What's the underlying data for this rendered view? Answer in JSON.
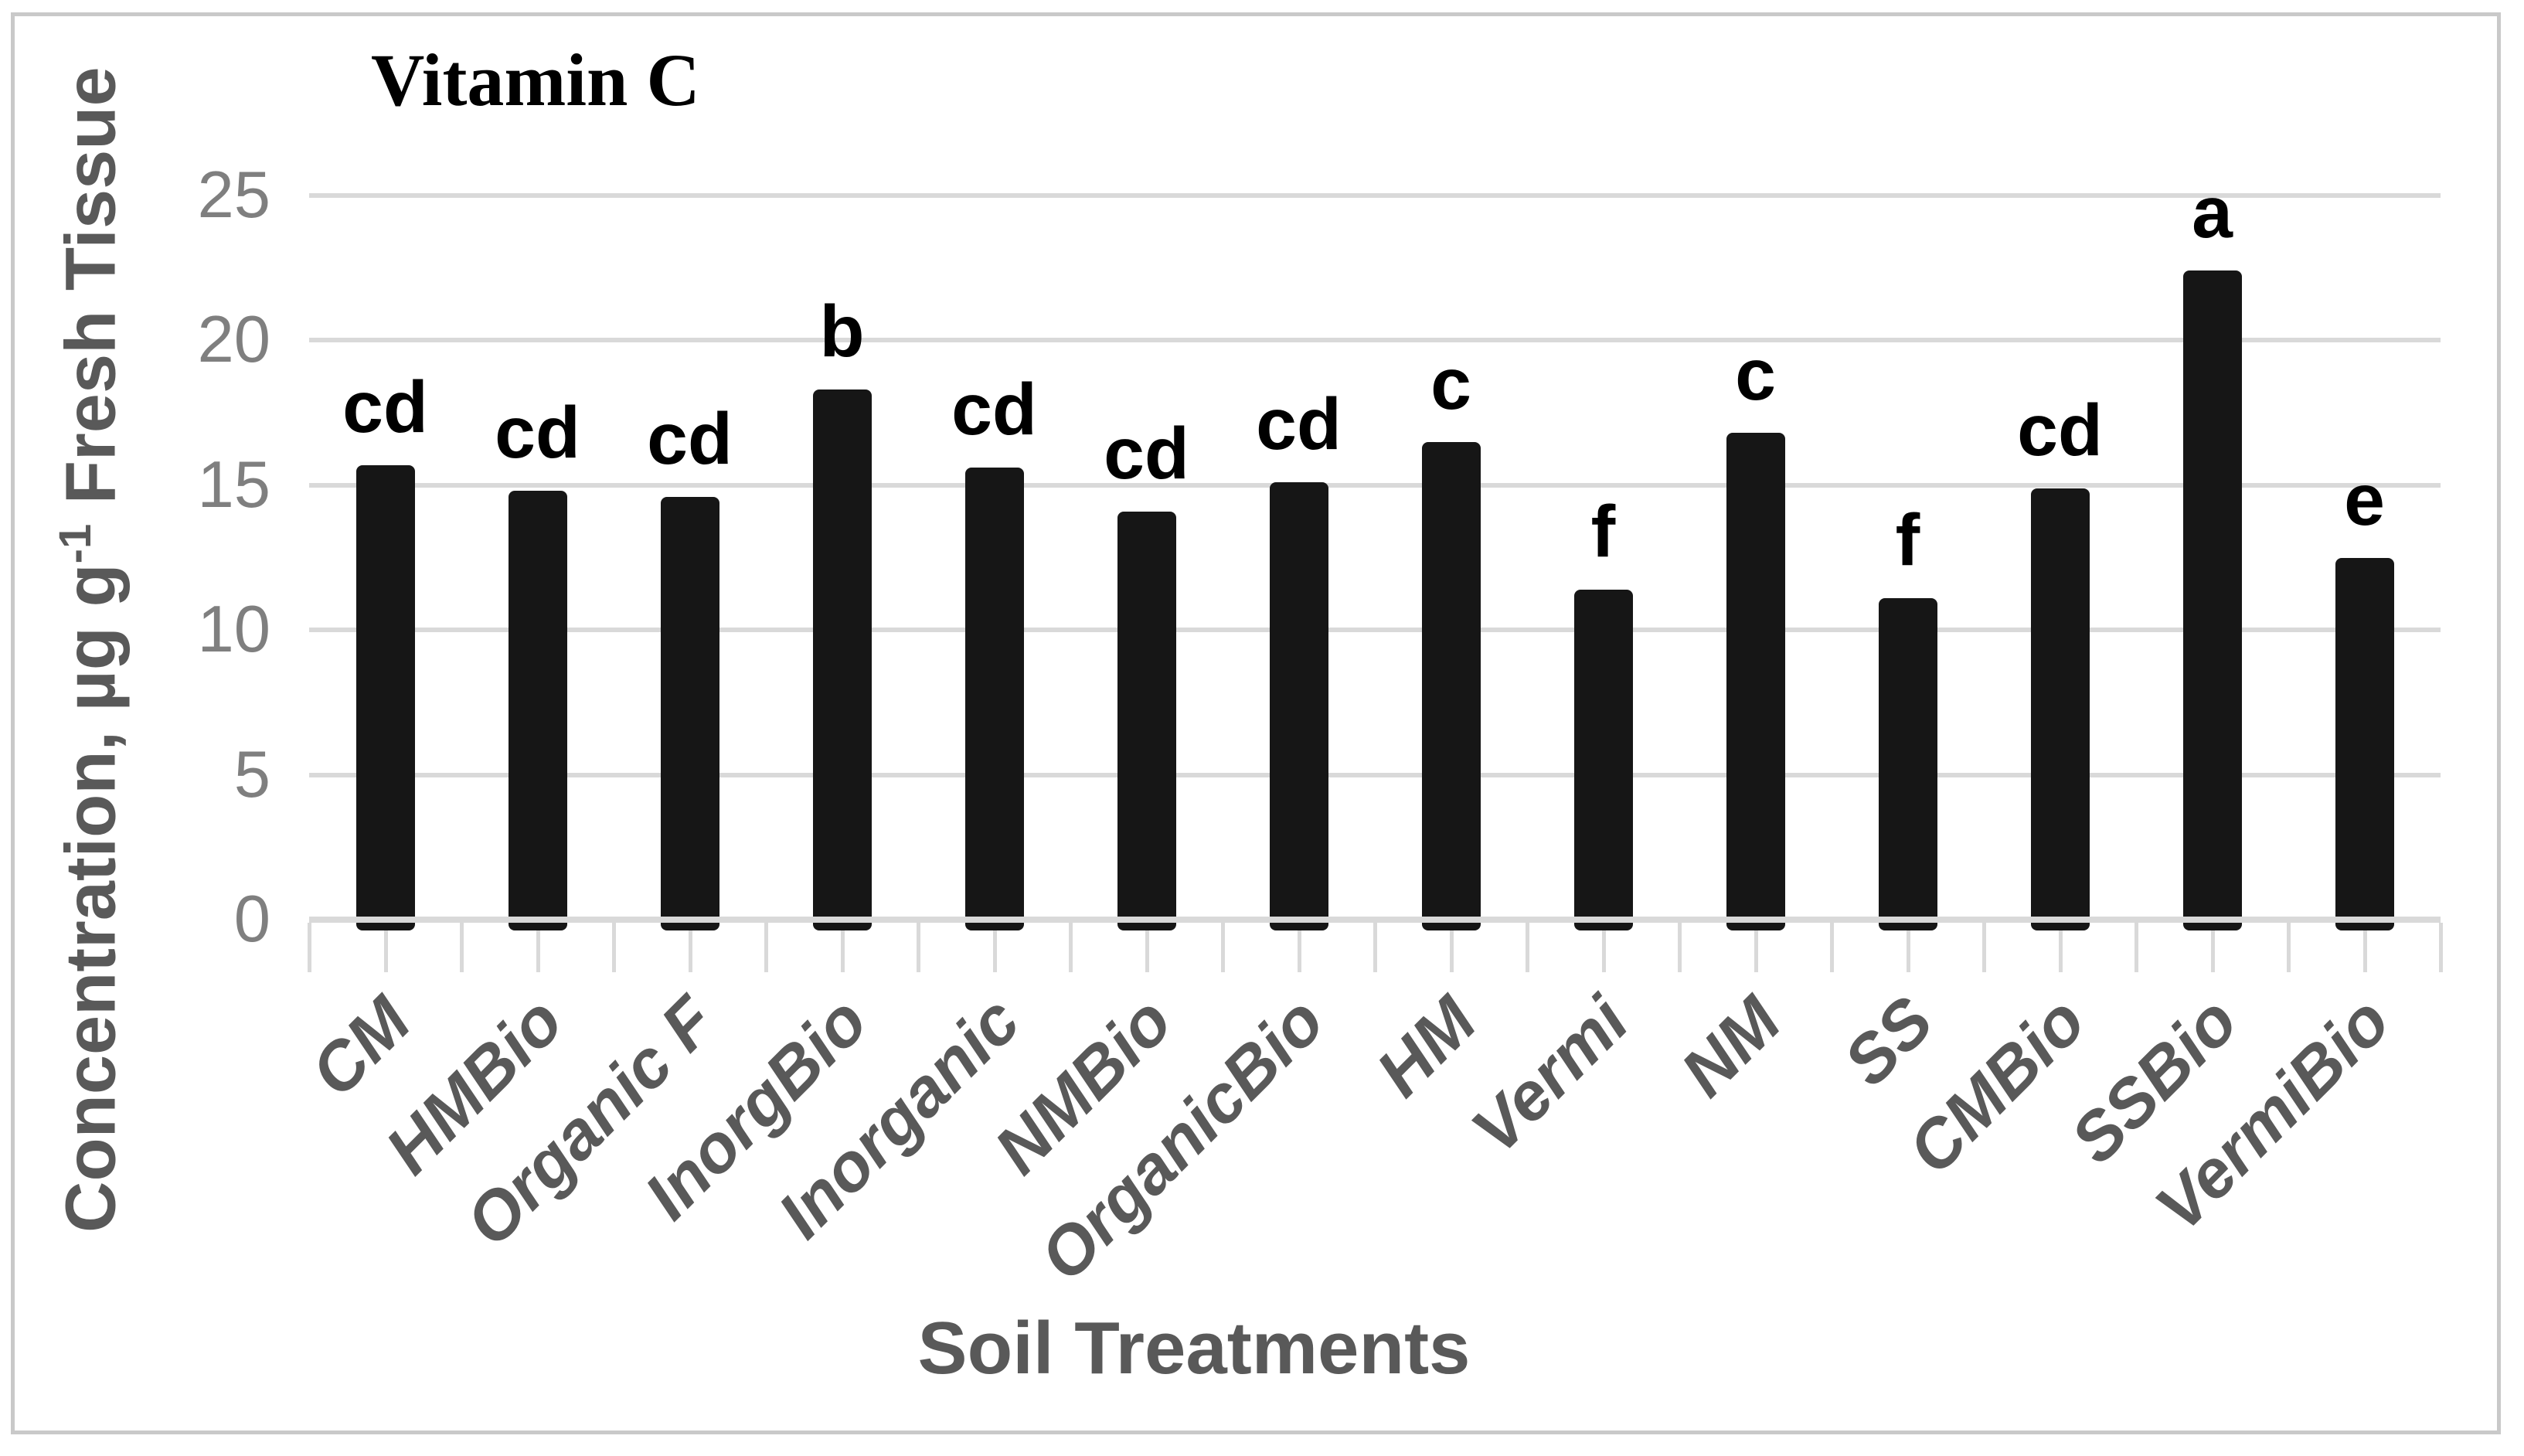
{
  "figure": {
    "background": "#ffffff",
    "border_color": "#c9c9c9"
  },
  "chart_data": {
    "type": "bar",
    "title": "Vitamin C",
    "xlabel": "Soil Treatments",
    "ylabel": "Concentration, µg g⁻¹ Fresh Tissue",
    "ylabel_parts": {
      "prefix": "Concentration, µg g",
      "superscript": "-1",
      "suffix": " Fresh Tissue"
    },
    "categories": [
      "CM",
      "HMBio",
      "Organic F",
      "InorgBio",
      "Inorganic",
      "NMBio",
      "OrganicBio",
      "HM",
      "Vermi",
      "NM",
      "SS",
      "CMBio",
      "SSBio",
      "VermiBio"
    ],
    "values": [
      15.7,
      14.8,
      14.6,
      18.3,
      15.6,
      14.1,
      15.1,
      16.5,
      11.4,
      16.8,
      11.1,
      14.9,
      22.4,
      12.5
    ],
    "bar_labels": [
      "cd",
      "cd",
      "cd",
      "b",
      "cd",
      "cd",
      "cd",
      "c",
      "f",
      "c",
      "f",
      "cd",
      "a",
      "e"
    ],
    "yticks": [
      0,
      5,
      10,
      15,
      20,
      25
    ],
    "ylim": [
      0,
      27
    ],
    "grid": true,
    "legend": "none",
    "bar_color": "#161616",
    "gridline_color": "#d9d9d9",
    "ytick_label_color": "#7f7f7f",
    "category_label_color": "#595959",
    "axis_title_color": "#595959",
    "title_color": "#000000"
  }
}
